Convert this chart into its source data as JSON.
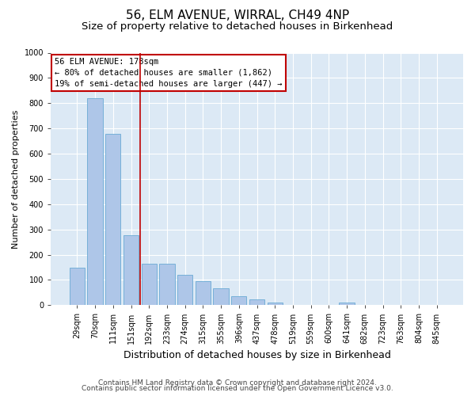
{
  "title": "56, ELM AVENUE, WIRRAL, CH49 4NP",
  "subtitle": "Size of property relative to detached houses in Birkenhead",
  "xlabel": "Distribution of detached houses by size in Birkenhead",
  "ylabel": "Number of detached properties",
  "categories": [
    "29sqm",
    "70sqm",
    "111sqm",
    "151sqm",
    "192sqm",
    "233sqm",
    "274sqm",
    "315sqm",
    "355sqm",
    "396sqm",
    "437sqm",
    "478sqm",
    "519sqm",
    "559sqm",
    "600sqm",
    "641sqm",
    "682sqm",
    "723sqm",
    "763sqm",
    "804sqm",
    "845sqm"
  ],
  "values": [
    148,
    820,
    680,
    278,
    163,
    163,
    120,
    95,
    68,
    35,
    22,
    10,
    0,
    0,
    0,
    10,
    0,
    0,
    0,
    0,
    0
  ],
  "bar_color": "#aec6e8",
  "bar_edge_color": "#6aaad4",
  "vline_position": 3.5,
  "vline_color": "#c00000",
  "annotation_text": "56 ELM AVENUE: 178sqm\n← 80% of detached houses are smaller (1,862)\n19% of semi-detached houses are larger (447) →",
  "annotation_box_color": "#c00000",
  "annotation_text_color": "#000000",
  "ylim": [
    0,
    1000
  ],
  "yticks": [
    0,
    100,
    200,
    300,
    400,
    500,
    600,
    700,
    800,
    900,
    1000
  ],
  "footer_line1": "Contains HM Land Registry data © Crown copyright and database right 2024.",
  "footer_line2": "Contains public sector information licensed under the Open Government Licence v3.0.",
  "bg_color": "#dce9f5",
  "fig_bg_color": "#ffffff",
  "title_fontsize": 11,
  "subtitle_fontsize": 9.5,
  "ylabel_fontsize": 8,
  "xlabel_fontsize": 9,
  "tick_fontsize": 7,
  "annotation_fontsize": 7.5,
  "footer_fontsize": 6.5
}
